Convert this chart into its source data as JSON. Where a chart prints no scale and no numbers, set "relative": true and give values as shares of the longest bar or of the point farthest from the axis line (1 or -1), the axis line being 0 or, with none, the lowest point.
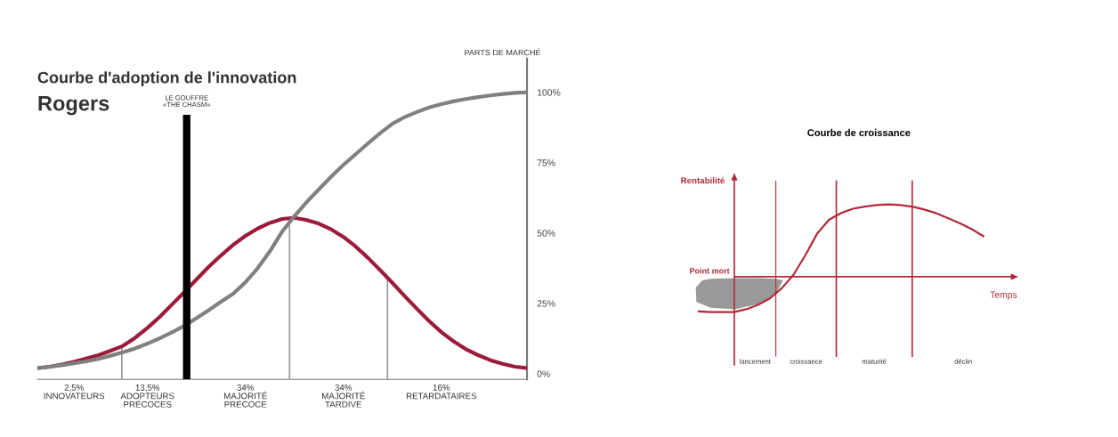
{
  "chart_data": [
    {
      "type": "line",
      "title": "Courbe d'adoption de l'innovation",
      "subtitle": "Rogers",
      "ylabel": "PARTS DE MARCHÉ",
      "ylim": [
        -2,
        112
      ],
      "yticks": [
        {
          "value": 0,
          "label": "0%"
        },
        {
          "value": 25,
          "label": "25%"
        },
        {
          "value": 50,
          "label": "50%"
        },
        {
          "value": 75,
          "label": "75%"
        },
        {
          "value": 100,
          "label": "100%"
        }
      ],
      "categories": [
        null,
        null,
        null,
        "2,5%\nINNOVATEURS",
        null,
        null,
        null,
        null,
        null,
        "13,5%\nADOPTEURS\nPRÉCOCES",
        null,
        null,
        null,
        null,
        null,
        null,
        null,
        "34%\nMAJORITÉ\nPRÉCOCE",
        null,
        null,
        null,
        null,
        null,
        null,
        null,
        "34%\nMAJORITÉ\nTARDIVE",
        null,
        null,
        null,
        null,
        null,
        null,
        null,
        "16%\nRETARDATAIRES",
        null,
        null,
        null,
        null,
        null,
        null,
        null
      ],
      "series": [
        {
          "color": "#9b1b3a",
          "values": [
            2.0,
            2.5,
            3.3,
            4.2,
            5.4,
            6.6,
            8.2,
            9.9,
            12.8,
            16.3,
            20.2,
            24.6,
            29.0,
            33.5,
            38.0,
            42.0,
            45.8,
            49.0,
            51.6,
            53.6,
            55.0,
            55.4,
            54.6,
            53.3,
            51.3,
            48.6,
            45.2,
            41.2,
            36.8,
            32.3,
            27.6,
            23.1,
            18.7,
            14.8,
            11.5,
            8.7,
            6.6,
            4.8,
            3.5,
            2.5,
            2.0
          ]
        },
        {
          "color": "#808080",
          "values": [
            2.0,
            2.4,
            3.0,
            3.7,
            4.4,
            5.3,
            6.4,
            7.6,
            9.0,
            10.7,
            12.6,
            14.7,
            17.0,
            19.7,
            22.6,
            25.6,
            28.4,
            32.5,
            37.5,
            43.5,
            50.5,
            56.0,
            61.0,
            65.5,
            70.0,
            74.2,
            78.0,
            81.8,
            85.5,
            88.8,
            91.2,
            93.0,
            94.6,
            95.8,
            96.8,
            97.6,
            98.3,
            98.9,
            99.4,
            99.8,
            100
          ]
        }
      ],
      "annotations": [
        "LE GOUFFRE\n«THE CHASM»"
      ]
    },
    {
      "type": "line",
      "title": "Courbe de croissance",
      "ylabel": "Rentabilité",
      "xlabel": "Temps",
      "relative": true,
      "categories": [
        null,
        null,
        null,
        null,
        null,
        null,
        null,
        null,
        null,
        null,
        null,
        null,
        null,
        null,
        null,
        null,
        null,
        null,
        null,
        null,
        null,
        null,
        null,
        null,
        null
      ],
      "series": [
        {
          "color": "#b22a3a",
          "values": [
            -0.48,
            -0.49,
            -0.49,
            -0.49,
            -0.45,
            -0.39,
            -0.3,
            -0.16,
            0.03,
            0.3,
            0.6,
            0.79,
            0.88,
            0.94,
            0.97,
            0.99,
            1,
            0.99,
            0.97,
            0.93,
            0.88,
            0.81,
            0.74,
            0.66,
            0.56
          ]
        }
      ],
      "ref_lines": [
        {
          "axis": "y",
          "value": 0,
          "label": "Point mort",
          "color": "#b22a3a"
        }
      ],
      "annotations": [
        "lancement",
        "croissance",
        "maturité",
        "déclin"
      ]
    }
  ]
}
